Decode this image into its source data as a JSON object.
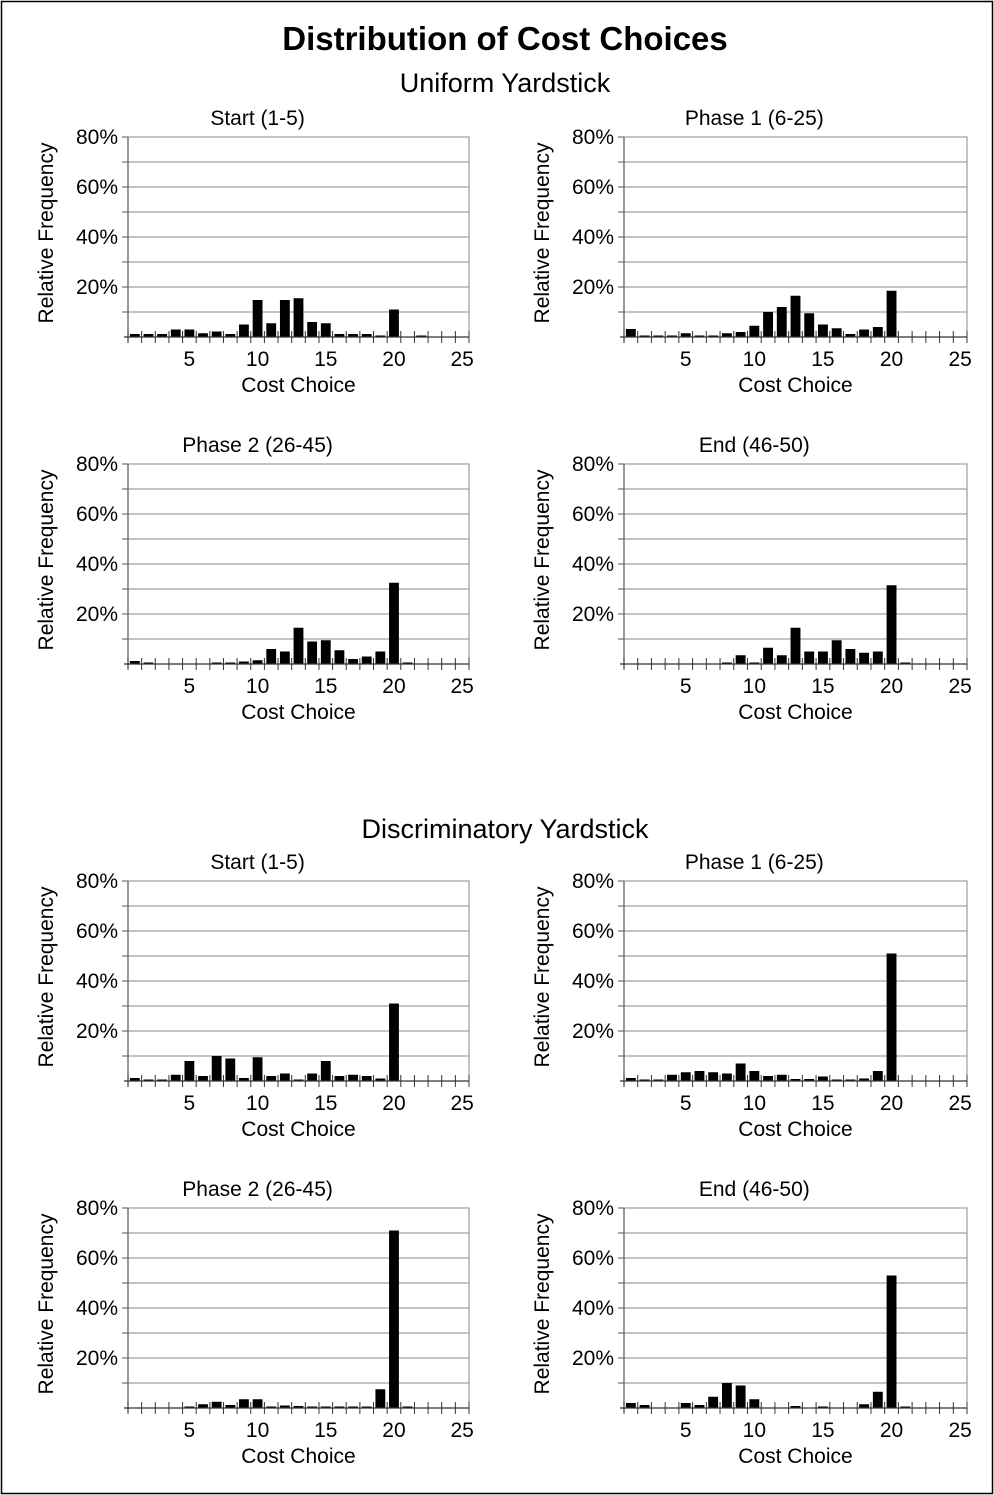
{
  "figure": {
    "title": "Distribution of Cost Choices",
    "groups": [
      "Uniform Yardstick",
      "Discriminatory Yardstick"
    ]
  },
  "chart_data": [
    {
      "type": "bar",
      "group": "Uniform Yardstick",
      "title": "Start (1-5)",
      "xlabel": "Cost Choice",
      "ylabel": "Relative Frequency",
      "xlim": [
        0,
        25
      ],
      "ylim": [
        0,
        0.8
      ],
      "xticks": [
        5,
        10,
        15,
        20,
        25
      ],
      "yticks": [
        0.2,
        0.4,
        0.6,
        0.8
      ],
      "ytick_labels": [
        "20%",
        "40%",
        "60%",
        "80%"
      ],
      "x": [
        1,
        2,
        3,
        4,
        5,
        6,
        7,
        8,
        9,
        10,
        11,
        12,
        13,
        14,
        15,
        16,
        17,
        18,
        19,
        20,
        21,
        22,
        23,
        24,
        25
      ],
      "values": [
        0.012,
        0.012,
        0.012,
        0.03,
        0.03,
        0.015,
        0.022,
        0.012,
        0.05,
        0.148,
        0.055,
        0.148,
        0.155,
        0.06,
        0.055,
        0.012,
        0.012,
        0.012,
        0.005,
        0.11,
        0,
        0.005,
        0,
        0,
        0
      ]
    },
    {
      "type": "bar",
      "group": "Uniform Yardstick",
      "title": "Phase 1 (6-25)",
      "xlabel": "Cost Choice",
      "ylabel": "Relative Frequency",
      "xlim": [
        0,
        25
      ],
      "ylim": [
        0,
        0.8
      ],
      "xticks": [
        5,
        10,
        15,
        20,
        25
      ],
      "yticks": [
        0.2,
        0.4,
        0.6,
        0.8
      ],
      "ytick_labels": [
        "20%",
        "40%",
        "60%",
        "80%"
      ],
      "x": [
        1,
        2,
        3,
        4,
        5,
        6,
        7,
        8,
        9,
        10,
        11,
        12,
        13,
        14,
        15,
        16,
        17,
        18,
        19,
        20,
        21,
        22,
        23,
        24,
        25
      ],
      "values": [
        0.032,
        0.005,
        0.005,
        0.005,
        0.015,
        0.005,
        0.005,
        0.015,
        0.02,
        0.045,
        0.1,
        0.12,
        0.165,
        0.095,
        0.05,
        0.035,
        0.012,
        0.03,
        0.04,
        0.185,
        0,
        0,
        0,
        0,
        0
      ]
    },
    {
      "type": "bar",
      "group": "Uniform Yardstick",
      "title": "Phase 2 (26-45)",
      "xlabel": "Cost Choice",
      "ylabel": "Relative Frequency",
      "xlim": [
        0,
        25
      ],
      "ylim": [
        0,
        0.8
      ],
      "xticks": [
        5,
        10,
        15,
        20,
        25
      ],
      "yticks": [
        0.2,
        0.4,
        0.6,
        0.8
      ],
      "ytick_labels": [
        "20%",
        "40%",
        "60%",
        "80%"
      ],
      "x": [
        1,
        2,
        3,
        4,
        5,
        6,
        7,
        8,
        9,
        10,
        11,
        12,
        13,
        14,
        15,
        16,
        17,
        18,
        19,
        20,
        21,
        22,
        23,
        24,
        25
      ],
      "values": [
        0.012,
        0.003,
        0,
        0,
        0,
        0,
        0.005,
        0.005,
        0.01,
        0.015,
        0.06,
        0.05,
        0.145,
        0.09,
        0.095,
        0.055,
        0.02,
        0.03,
        0.05,
        0.325,
        0.005,
        0,
        0,
        0,
        0
      ]
    },
    {
      "type": "bar",
      "group": "Uniform Yardstick",
      "title": "End (46-50)",
      "xlabel": "Cost Choice",
      "ylabel": "Relative Frequency",
      "xlim": [
        0,
        25
      ],
      "ylim": [
        0,
        0.8
      ],
      "xticks": [
        5,
        10,
        15,
        20,
        25
      ],
      "yticks": [
        0.2,
        0.4,
        0.6,
        0.8
      ],
      "ytick_labels": [
        "20%",
        "40%",
        "60%",
        "80%"
      ],
      "x": [
        1,
        2,
        3,
        4,
        5,
        6,
        7,
        8,
        9,
        10,
        11,
        12,
        13,
        14,
        15,
        16,
        17,
        18,
        19,
        20,
        21,
        22,
        23,
        24,
        25
      ],
      "values": [
        0,
        0,
        0,
        0,
        0,
        0,
        0,
        0.005,
        0.035,
        0.005,
        0.065,
        0.035,
        0.145,
        0.05,
        0.05,
        0.095,
        0.06,
        0.045,
        0.05,
        0.315,
        0.005,
        0,
        0,
        0,
        0
      ]
    },
    {
      "type": "bar",
      "group": "Discriminatory Yardstick",
      "title": "Start (1-5)",
      "xlabel": "Cost Choice",
      "ylabel": "Relative Frequency",
      "xlim": [
        0,
        25
      ],
      "ylim": [
        0,
        0.8
      ],
      "xticks": [
        5,
        10,
        15,
        20,
        25
      ],
      "yticks": [
        0.2,
        0.4,
        0.6,
        0.8
      ],
      "ytick_labels": [
        "20%",
        "40%",
        "60%",
        "80%"
      ],
      "x": [
        1,
        2,
        3,
        4,
        5,
        6,
        7,
        8,
        9,
        10,
        11,
        12,
        13,
        14,
        15,
        16,
        17,
        18,
        19,
        20,
        21,
        22,
        23,
        24,
        25
      ],
      "values": [
        0.012,
        0.005,
        0.005,
        0.025,
        0.08,
        0.02,
        0.1,
        0.09,
        0.012,
        0.095,
        0.02,
        0.03,
        0.005,
        0.03,
        0.08,
        0.02,
        0.025,
        0.02,
        0.01,
        0.31,
        0,
        0,
        0,
        0,
        0
      ]
    },
    {
      "type": "bar",
      "group": "Discriminatory Yardstick",
      "title": "Phase 1 (6-25)",
      "xlabel": "Cost Choice",
      "ylabel": "Relative Frequency",
      "xlim": [
        0,
        25
      ],
      "ylim": [
        0,
        0.8
      ],
      "xticks": [
        5,
        10,
        15,
        20,
        25
      ],
      "yticks": [
        0.2,
        0.4,
        0.6,
        0.8
      ],
      "ytick_labels": [
        "20%",
        "40%",
        "60%",
        "80%"
      ],
      "x": [
        1,
        2,
        3,
        4,
        5,
        6,
        7,
        8,
        9,
        10,
        11,
        12,
        13,
        14,
        15,
        16,
        17,
        18,
        19,
        20,
        21,
        22,
        23,
        24,
        25
      ],
      "values": [
        0.012,
        0.005,
        0.005,
        0.025,
        0.035,
        0.04,
        0.035,
        0.03,
        0.07,
        0.04,
        0.02,
        0.025,
        0.008,
        0.008,
        0.018,
        0.005,
        0.005,
        0.01,
        0.04,
        0.51,
        0,
        0,
        0,
        0,
        0
      ]
    },
    {
      "type": "bar",
      "group": "Discriminatory Yardstick",
      "title": "Phase 2 (26-45)",
      "xlabel": "Cost Choice",
      "ylabel": "Relative Frequency",
      "xlim": [
        0,
        25
      ],
      "ylim": [
        0,
        0.8
      ],
      "xticks": [
        5,
        10,
        15,
        20,
        25
      ],
      "yticks": [
        0.2,
        0.4,
        0.6,
        0.8
      ],
      "ytick_labels": [
        "20%",
        "40%",
        "60%",
        "80%"
      ],
      "x": [
        1,
        2,
        3,
        4,
        5,
        6,
        7,
        8,
        9,
        10,
        11,
        12,
        13,
        14,
        15,
        16,
        17,
        18,
        19,
        20,
        21,
        22,
        23,
        24,
        25
      ],
      "values": [
        0,
        0,
        0,
        0,
        0.005,
        0.015,
        0.025,
        0.012,
        0.035,
        0.035,
        0.005,
        0.01,
        0.008,
        0.005,
        0.005,
        0.005,
        0.005,
        0.005,
        0.075,
        0.71,
        0.005,
        0,
        0,
        0,
        0
      ]
    },
    {
      "type": "bar",
      "group": "Discriminatory Yardstick",
      "title": "End (46-50)",
      "xlabel": "Cost Choice",
      "ylabel": "Relative Frequency",
      "xlim": [
        0,
        25
      ],
      "ylim": [
        0,
        0.8
      ],
      "xticks": [
        5,
        10,
        15,
        20,
        25
      ],
      "yticks": [
        0.2,
        0.4,
        0.6,
        0.8
      ],
      "ytick_labels": [
        "20%",
        "40%",
        "60%",
        "80%"
      ],
      "x": [
        1,
        2,
        3,
        4,
        5,
        6,
        7,
        8,
        9,
        10,
        11,
        12,
        13,
        14,
        15,
        16,
        17,
        18,
        19,
        20,
        21,
        22,
        23,
        24,
        25
      ],
      "values": [
        0.02,
        0.012,
        0,
        0,
        0.02,
        0.012,
        0.045,
        0.1,
        0.09,
        0.035,
        0,
        0,
        0.008,
        0,
        0.005,
        0,
        0,
        0.015,
        0.065,
        0.53,
        0.005,
        0,
        0,
        0,
        0
      ]
    }
  ]
}
